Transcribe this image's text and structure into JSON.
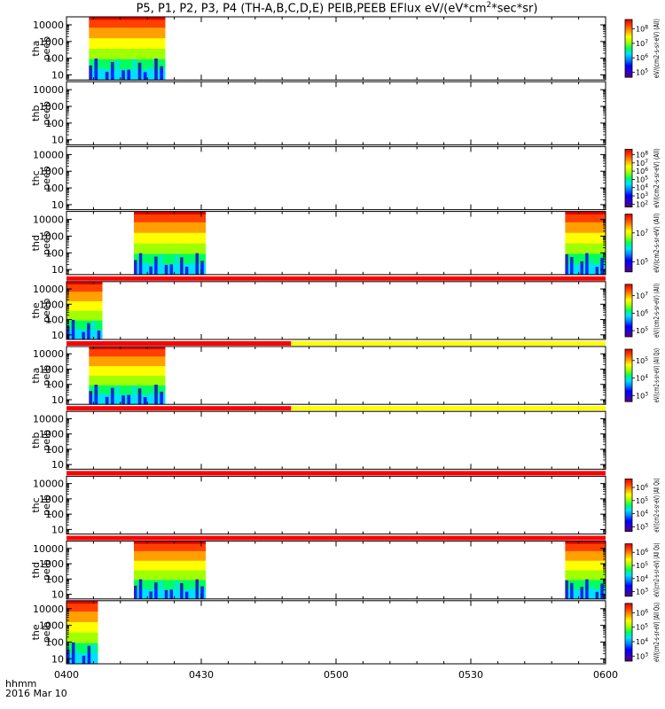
{
  "title_parts": [
    "P5, P1, P2, P3, P4 (TH-A,B,C,D,E) PEIB,PEEB EFlux eV/(eV*cm",
    "2",
    "*sec*sr)"
  ],
  "chart_data": {
    "type": "heatmap",
    "time_axis": {
      "ticks": [
        "0400",
        "0430",
        "0500",
        "0530",
        "0600"
      ],
      "label": "hhmm",
      "date": "2016 Mar 10",
      "range_minutes": [
        0,
        120
      ]
    },
    "energy_ticks": [
      "10",
      "100",
      "1000",
      "10000"
    ],
    "energy_range_ev": [
      5,
      30000
    ],
    "scale": "log",
    "panels": [
      {
        "name": "tha peeb",
        "label_lines": [
          "tha",
          "peeb"
        ],
        "colorbar_unit": "eV/(cm2-s-sr-eV) (All)",
        "colorbar_ticks": [
          "10^5",
          "10^6",
          "10^7",
          "10^8"
        ],
        "data_segments_minutes": [
          [
            5,
            22
          ]
        ],
        "flag_bar": null
      },
      {
        "name": "thb peeb",
        "label_lines": [
          "thb",
          "peeb"
        ],
        "colorbar_unit": "",
        "colorbar_ticks": [],
        "data_segments_minutes": [],
        "flag_bar": null
      },
      {
        "name": "thc peeb",
        "label_lines": [
          "thc",
          "peeb"
        ],
        "colorbar_unit": "eV/(cm2-s-sr-eV) (All)",
        "colorbar_ticks": [
          "10^2",
          "10^3",
          "10^4",
          "10^5",
          "10^6",
          "10^7",
          "10^8"
        ],
        "data_segments_minutes": [],
        "flag_bar": null
      },
      {
        "name": "thd peeb",
        "label_lines": [
          "thd",
          "peeb"
        ],
        "colorbar_unit": "eV/(cm2-s-sr-eV) (All)",
        "colorbar_ticks": [
          "10^5",
          "10^7"
        ],
        "data_segments_minutes": [
          [
            15,
            31
          ],
          [
            111,
            120
          ]
        ],
        "flag_bar": null
      },
      {
        "name": "the peeb",
        "label_lines": [
          "the",
          "peeb"
        ],
        "colorbar_unit": "eV/(cm2-s-sr-eV) (All)",
        "colorbar_ticks": [
          "10^5",
          "10^6",
          "10^7"
        ],
        "data_segments_minutes": [
          [
            0,
            8
          ]
        ],
        "flag_bar": [
          {
            "from": 0,
            "to": 120,
            "color": "#ff0000"
          }
        ]
      },
      {
        "name": "tha peib",
        "label_lines": [
          "tha",
          "peib"
        ],
        "colorbar_unit": "eV/(cm2-s-sr-eV) (All Qs)",
        "colorbar_ticks": [
          "10^3",
          "10^4",
          "10^5"
        ],
        "data_segments_minutes": [
          [
            5,
            22
          ]
        ],
        "flag_bar": [
          {
            "from": 0,
            "to": 50,
            "color": "#ff0000"
          },
          {
            "from": 50,
            "to": 120,
            "color": "#ffff00"
          }
        ]
      },
      {
        "name": "thb peib",
        "label_lines": [
          "thb",
          "peib"
        ],
        "colorbar_unit": "",
        "colorbar_ticks": [],
        "data_segments_minutes": [],
        "flag_bar": [
          {
            "from": 0,
            "to": 50,
            "color": "#ff0000"
          },
          {
            "from": 50,
            "to": 120,
            "color": "#ffff00"
          }
        ]
      },
      {
        "name": "thc peib",
        "label_lines": [
          "thc",
          "peib"
        ],
        "colorbar_unit": "eV/(cm2-s-sr-eV) (All Qs)",
        "colorbar_ticks": [
          "10^3",
          "10^4",
          "10^5",
          "10^6"
        ],
        "data_segments_minutes": [],
        "flag_bar": [
          {
            "from": 0,
            "to": 120,
            "color": "#ff0000"
          }
        ]
      },
      {
        "name": "thd peib",
        "label_lines": [
          "thd",
          "peib"
        ],
        "colorbar_unit": "eV/(cm2-s-sr-eV) (All Qs)",
        "colorbar_ticks": [
          "10^3",
          "10^4",
          "10^5",
          "10^6"
        ],
        "data_segments_minutes": [
          [
            15,
            31
          ],
          [
            111,
            120
          ]
        ],
        "flag_bar": [
          {
            "from": 0,
            "to": 120,
            "color": "#ff0000"
          }
        ]
      },
      {
        "name": "the peib",
        "label_lines": [
          "the",
          "peib"
        ],
        "colorbar_unit": "eV/(cm2-s-sr-eV) (All Qs)",
        "colorbar_ticks": [
          "10^3",
          "10^4",
          "10^5",
          "10^6"
        ],
        "data_segments_minutes": [
          [
            0,
            7
          ]
        ],
        "flag_bar": null
      }
    ]
  },
  "colors": {
    "colormap": [
      "#5a007a",
      "#2a00cc",
      "#0000ff",
      "#0080ff",
      "#00e0ff",
      "#00ff60",
      "#a0ff00",
      "#ffff00",
      "#ffa000",
      "#ff4000",
      "#e00000"
    ],
    "flag_red": "#ff0000",
    "flag_yellow": "#ffff00"
  }
}
